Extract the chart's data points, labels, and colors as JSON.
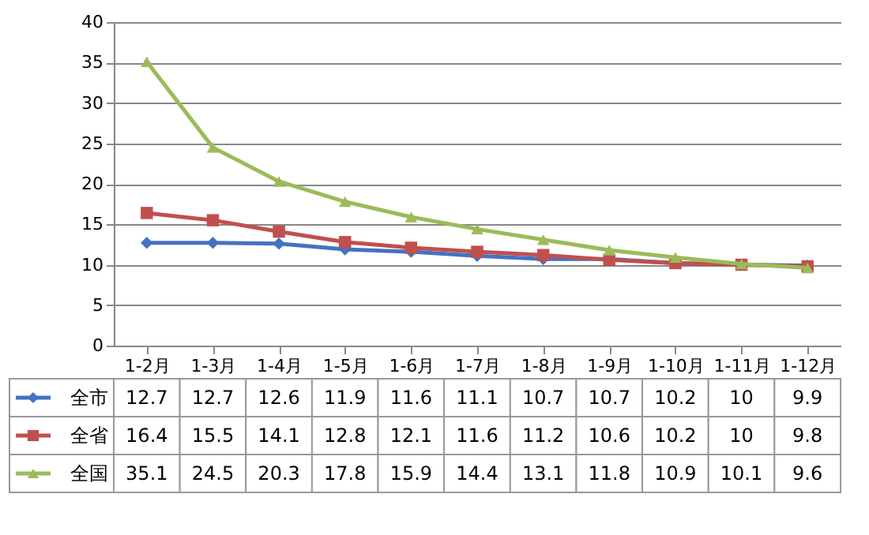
{
  "chart_data": {
    "type": "line",
    "categories": [
      "1-2月",
      "1-3月",
      "1-4月",
      "1-5月",
      "1-6月",
      "1-7月",
      "1-8月",
      "1-9月",
      "1-10月",
      "1-11月",
      "1-12月"
    ],
    "series": [
      {
        "name": "全市",
        "color": "#4472c4",
        "marker": "diamond",
        "values": [
          12.7,
          12.7,
          12.6,
          11.9,
          11.6,
          11.1,
          10.7,
          10.7,
          10.2,
          10,
          9.9
        ]
      },
      {
        "name": "全省",
        "color": "#c0504d",
        "marker": "square",
        "values": [
          16.4,
          15.5,
          14.1,
          12.8,
          12.1,
          11.6,
          11.2,
          10.6,
          10.2,
          10,
          9.8
        ]
      },
      {
        "name": "全国",
        "color": "#9bbb59",
        "marker": "triangle",
        "values": [
          35.1,
          24.5,
          20.3,
          17.8,
          15.9,
          14.4,
          13.1,
          11.8,
          10.9,
          10.1,
          9.6
        ]
      }
    ],
    "ylim": [
      0,
      40
    ],
    "yticks": [
      0,
      5,
      10,
      15,
      20,
      25,
      30,
      35,
      40
    ],
    "grid": "y",
    "legend": "bottom",
    "data_labels": true
  }
}
